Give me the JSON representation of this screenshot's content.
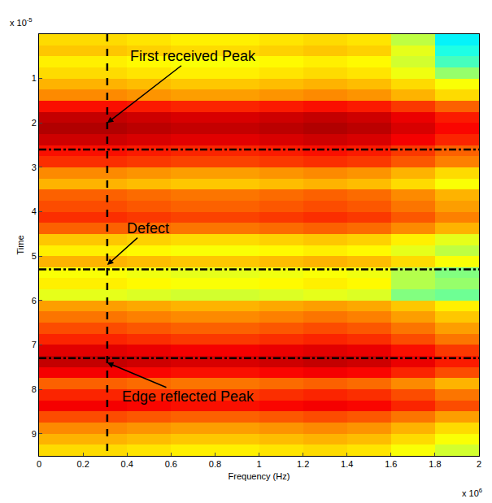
{
  "chart_data": {
    "type": "heatmap",
    "x_title": "Frequency (Hz)",
    "y_title": "Time",
    "x_exponent": {
      "base": "x 10",
      "exponent": "6"
    },
    "y_exponent": {
      "base": "x 10",
      "exponent": "-5"
    },
    "xlim": [
      0,
      2
    ],
    "xticks": [
      0,
      0.2,
      0.4,
      0.6,
      0.8,
      1,
      1.2,
      1.4,
      1.6,
      1.8,
      2
    ],
    "ylim": [
      0,
      9.5
    ],
    "yticks": [
      1,
      2,
      3,
      4,
      5,
      6,
      7,
      8,
      9
    ],
    "zlim": [
      0,
      1
    ],
    "x": [
      0.1,
      0.3,
      0.5,
      0.7,
      0.9,
      1.1,
      1.3,
      1.5,
      1.7,
      1.9
    ],
    "y": [
      0.125,
      0.375,
      0.625,
      0.875,
      1.125,
      1.375,
      1.625,
      1.875,
      2.125,
      2.375,
      2.625,
      2.875,
      3.125,
      3.375,
      3.625,
      3.875,
      4.125,
      4.375,
      4.625,
      4.875,
      5.125,
      5.375,
      5.625,
      5.875,
      6.125,
      6.375,
      6.625,
      6.875,
      7.125,
      7.375,
      7.625,
      7.875,
      8.125,
      8.375,
      8.625,
      8.875,
      9.125,
      9.375
    ],
    "z": [
      [
        0.66,
        0.66,
        0.65,
        0.64,
        0.64,
        0.65,
        0.66,
        0.65,
        0.56,
        0.36
      ],
      [
        0.68,
        0.68,
        0.67,
        0.66,
        0.66,
        0.67,
        0.68,
        0.67,
        0.6,
        0.4
      ],
      [
        0.64,
        0.64,
        0.63,
        0.62,
        0.62,
        0.63,
        0.64,
        0.63,
        0.58,
        0.44
      ],
      [
        0.66,
        0.66,
        0.65,
        0.64,
        0.64,
        0.65,
        0.66,
        0.65,
        0.61,
        0.52
      ],
      [
        0.7,
        0.7,
        0.69,
        0.68,
        0.68,
        0.69,
        0.7,
        0.69,
        0.66,
        0.62
      ],
      [
        0.74,
        0.74,
        0.73,
        0.72,
        0.72,
        0.73,
        0.74,
        0.73,
        0.7,
        0.66
      ],
      [
        0.86,
        0.86,
        0.85,
        0.84,
        0.84,
        0.85,
        0.86,
        0.85,
        0.82,
        0.78
      ],
      [
        0.93,
        0.93,
        0.92,
        0.91,
        0.91,
        0.92,
        0.93,
        0.92,
        0.89,
        0.85
      ],
      [
        0.95,
        0.95,
        0.94,
        0.93,
        0.93,
        0.94,
        0.95,
        0.94,
        0.91,
        0.87
      ],
      [
        0.92,
        0.92,
        0.91,
        0.9,
        0.9,
        0.91,
        0.92,
        0.91,
        0.88,
        0.84
      ],
      [
        0.86,
        0.86,
        0.85,
        0.84,
        0.84,
        0.85,
        0.86,
        0.85,
        0.82,
        0.78
      ],
      [
        0.83,
        0.83,
        0.82,
        0.81,
        0.81,
        0.82,
        0.83,
        0.82,
        0.79,
        0.75
      ],
      [
        0.74,
        0.74,
        0.73,
        0.72,
        0.72,
        0.73,
        0.74,
        0.73,
        0.7,
        0.66
      ],
      [
        0.7,
        0.7,
        0.69,
        0.68,
        0.68,
        0.69,
        0.7,
        0.69,
        0.66,
        0.62
      ],
      [
        0.78,
        0.78,
        0.77,
        0.76,
        0.76,
        0.77,
        0.78,
        0.77,
        0.74,
        0.7
      ],
      [
        0.8,
        0.8,
        0.79,
        0.78,
        0.78,
        0.79,
        0.8,
        0.79,
        0.76,
        0.72
      ],
      [
        0.83,
        0.83,
        0.82,
        0.81,
        0.81,
        0.82,
        0.83,
        0.82,
        0.79,
        0.75
      ],
      [
        0.78,
        0.78,
        0.77,
        0.76,
        0.76,
        0.77,
        0.78,
        0.77,
        0.74,
        0.7
      ],
      [
        0.68,
        0.68,
        0.67,
        0.66,
        0.66,
        0.67,
        0.68,
        0.67,
        0.64,
        0.6
      ],
      [
        0.64,
        0.64,
        0.63,
        0.62,
        0.62,
        0.63,
        0.64,
        0.63,
        0.6,
        0.56
      ],
      [
        0.7,
        0.7,
        0.69,
        0.68,
        0.68,
        0.69,
        0.7,
        0.69,
        0.66,
        0.62
      ],
      [
        0.62,
        0.62,
        0.61,
        0.6,
        0.6,
        0.61,
        0.62,
        0.61,
        0.55,
        0.5
      ],
      [
        0.64,
        0.64,
        0.63,
        0.62,
        0.62,
        0.63,
        0.64,
        0.63,
        0.55,
        0.52
      ],
      [
        0.6,
        0.6,
        0.59,
        0.58,
        0.58,
        0.59,
        0.6,
        0.59,
        0.5,
        0.48
      ],
      [
        0.72,
        0.72,
        0.71,
        0.7,
        0.7,
        0.71,
        0.72,
        0.71,
        0.68,
        0.64
      ],
      [
        0.76,
        0.76,
        0.75,
        0.74,
        0.74,
        0.75,
        0.76,
        0.75,
        0.72,
        0.68
      ],
      [
        0.8,
        0.8,
        0.79,
        0.78,
        0.78,
        0.79,
        0.8,
        0.79,
        0.76,
        0.72
      ],
      [
        0.84,
        0.84,
        0.83,
        0.82,
        0.82,
        0.83,
        0.84,
        0.83,
        0.8,
        0.76
      ],
      [
        0.9,
        0.9,
        0.89,
        0.88,
        0.88,
        0.89,
        0.9,
        0.89,
        0.86,
        0.82
      ],
      [
        0.93,
        0.93,
        0.92,
        0.91,
        0.91,
        0.92,
        0.93,
        0.92,
        0.89,
        0.85
      ],
      [
        0.88,
        0.88,
        0.87,
        0.86,
        0.86,
        0.87,
        0.88,
        0.87,
        0.84,
        0.8
      ],
      [
        0.78,
        0.78,
        0.77,
        0.76,
        0.76,
        0.77,
        0.78,
        0.77,
        0.74,
        0.7
      ],
      [
        0.84,
        0.84,
        0.83,
        0.82,
        0.82,
        0.83,
        0.84,
        0.83,
        0.8,
        0.76
      ],
      [
        0.88,
        0.88,
        0.87,
        0.86,
        0.86,
        0.87,
        0.88,
        0.87,
        0.84,
        0.8
      ],
      [
        0.8,
        0.8,
        0.79,
        0.78,
        0.78,
        0.79,
        0.8,
        0.79,
        0.76,
        0.72
      ],
      [
        0.74,
        0.74,
        0.73,
        0.72,
        0.72,
        0.73,
        0.74,
        0.73,
        0.7,
        0.66
      ],
      [
        0.7,
        0.7,
        0.69,
        0.68,
        0.68,
        0.69,
        0.7,
        0.69,
        0.66,
        0.62
      ],
      [
        0.66,
        0.66,
        0.65,
        0.64,
        0.64,
        0.65,
        0.66,
        0.65,
        0.62,
        0.58
      ]
    ],
    "vlines": [
      0.31
    ],
    "hlines": [
      2.6,
      5.3,
      7.3
    ],
    "annotations": [
      {
        "text": "First received Peak",
        "x": 0.31,
        "y": 2.0
      },
      {
        "text": "Defect",
        "x": 0.31,
        "y": 5.2
      },
      {
        "text": "Edge reflected Peak",
        "x": 0.31,
        "y": 7.4
      }
    ]
  }
}
